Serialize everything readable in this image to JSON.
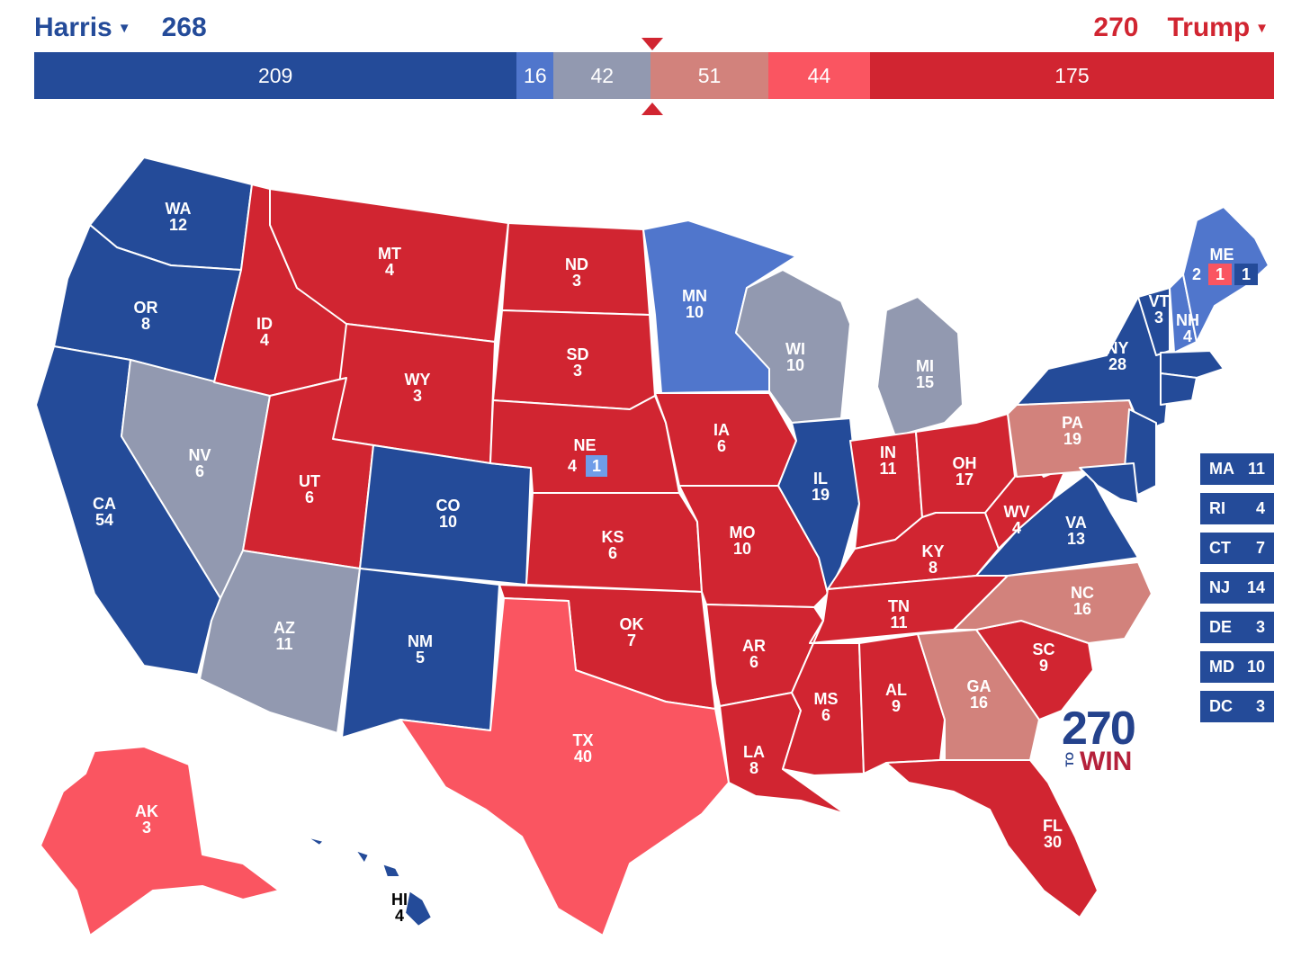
{
  "colors": {
    "safe_d": "#244b99",
    "likely_d": "#5076cc",
    "tossup": "#9299b0",
    "lean_r": "#d2827c",
    "likely_r": "#fa5561",
    "safe_r": "#d12531",
    "district_d": "#6f9de8"
  },
  "header": {
    "harris_name": "Harris",
    "harris_total": "268",
    "trump_name": "Trump",
    "trump_total": "270",
    "caret_icon": "chevron-down-icon"
  },
  "bar": [
    {
      "value": 209,
      "label": "209",
      "category": "safe_d"
    },
    {
      "value": 16,
      "label": "16",
      "category": "likely_d"
    },
    {
      "value": 42,
      "label": "42",
      "category": "tossup"
    },
    {
      "value": 51,
      "label": "51",
      "category": "lean_r"
    },
    {
      "value": 44,
      "label": "44",
      "category": "likely_r"
    },
    {
      "value": 175,
      "label": "175",
      "category": "safe_r"
    }
  ],
  "states": {
    "WA": {
      "abbr": "WA",
      "ev": "12",
      "category": "safe_d"
    },
    "OR": {
      "abbr": "OR",
      "ev": "8",
      "category": "safe_d"
    },
    "CA": {
      "abbr": "CA",
      "ev": "54",
      "category": "safe_d"
    },
    "NV": {
      "abbr": "NV",
      "ev": "6",
      "category": "tossup"
    },
    "ID": {
      "abbr": "ID",
      "ev": "4",
      "category": "safe_r"
    },
    "MT": {
      "abbr": "MT",
      "ev": "4",
      "category": "safe_r"
    },
    "WY": {
      "abbr": "WY",
      "ev": "3",
      "category": "safe_r"
    },
    "UT": {
      "abbr": "UT",
      "ev": "6",
      "category": "safe_r"
    },
    "AZ": {
      "abbr": "AZ",
      "ev": "11",
      "category": "tossup"
    },
    "CO": {
      "abbr": "CO",
      "ev": "10",
      "category": "safe_d"
    },
    "NM": {
      "abbr": "NM",
      "ev": "5",
      "category": "safe_d"
    },
    "ND": {
      "abbr": "ND",
      "ev": "3",
      "category": "safe_r"
    },
    "SD": {
      "abbr": "SD",
      "ev": "3",
      "category": "safe_r"
    },
    "NE": {
      "abbr": "NE",
      "ev": "4",
      "district_ev": "1",
      "category": "safe_r"
    },
    "KS": {
      "abbr": "KS",
      "ev": "6",
      "category": "safe_r"
    },
    "OK": {
      "abbr": "OK",
      "ev": "7",
      "category": "safe_r"
    },
    "TX": {
      "abbr": "TX",
      "ev": "40",
      "category": "likely_r"
    },
    "MN": {
      "abbr": "MN",
      "ev": "10",
      "category": "likely_d"
    },
    "IA": {
      "abbr": "IA",
      "ev": "6",
      "category": "safe_r"
    },
    "MO": {
      "abbr": "MO",
      "ev": "10",
      "category": "safe_r"
    },
    "AR": {
      "abbr": "AR",
      "ev": "6",
      "category": "safe_r"
    },
    "LA": {
      "abbr": "LA",
      "ev": "8",
      "category": "safe_r"
    },
    "WI": {
      "abbr": "WI",
      "ev": "10",
      "category": "tossup"
    },
    "IL": {
      "abbr": "IL",
      "ev": "19",
      "category": "safe_d"
    },
    "MI": {
      "abbr": "MI",
      "ev": "15",
      "category": "tossup"
    },
    "IN": {
      "abbr": "IN",
      "ev": "11",
      "category": "safe_r"
    },
    "OH": {
      "abbr": "OH",
      "ev": "17",
      "category": "safe_r"
    },
    "KY": {
      "abbr": "KY",
      "ev": "8",
      "category": "safe_r"
    },
    "TN": {
      "abbr": "TN",
      "ev": "11",
      "category": "safe_r"
    },
    "MS": {
      "abbr": "MS",
      "ev": "6",
      "category": "safe_r"
    },
    "AL": {
      "abbr": "AL",
      "ev": "9",
      "category": "safe_r"
    },
    "GA": {
      "abbr": "GA",
      "ev": "16",
      "category": "lean_r"
    },
    "FL": {
      "abbr": "FL",
      "ev": "30",
      "category": "safe_r"
    },
    "SC": {
      "abbr": "SC",
      "ev": "9",
      "category": "safe_r"
    },
    "NC": {
      "abbr": "NC",
      "ev": "16",
      "category": "lean_r"
    },
    "VA": {
      "abbr": "VA",
      "ev": "13",
      "category": "safe_d"
    },
    "WV": {
      "abbr": "WV",
      "ev": "4",
      "category": "safe_r"
    },
    "PA": {
      "abbr": "PA",
      "ev": "19",
      "category": "lean_r"
    },
    "NY": {
      "abbr": "NY",
      "ev": "28",
      "category": "safe_d"
    },
    "VT": {
      "abbr": "VT",
      "ev": "3",
      "category": "safe_d"
    },
    "NH": {
      "abbr": "NH",
      "ev": "4",
      "category": "likely_d"
    },
    "ME": {
      "abbr": "ME",
      "ev_at_large": "2",
      "ev_d1": "1",
      "ev_d2": "1",
      "category": "likely_d"
    },
    "AK": {
      "abbr": "AK",
      "ev": "3",
      "category": "likely_r"
    },
    "HI": {
      "abbr": "HI",
      "ev": "4",
      "category": "safe_d"
    }
  },
  "small_states": [
    {
      "abbr": "MA",
      "ev": "11"
    },
    {
      "abbr": "RI",
      "ev": "4"
    },
    {
      "abbr": "CT",
      "ev": "7"
    },
    {
      "abbr": "NJ",
      "ev": "14"
    },
    {
      "abbr": "DE",
      "ev": "3"
    },
    {
      "abbr": "MD",
      "ev": "10"
    },
    {
      "abbr": "DC",
      "ev": "3"
    }
  ],
  "logo": {
    "number": "270",
    "to": "TO",
    "win": "WIN"
  }
}
